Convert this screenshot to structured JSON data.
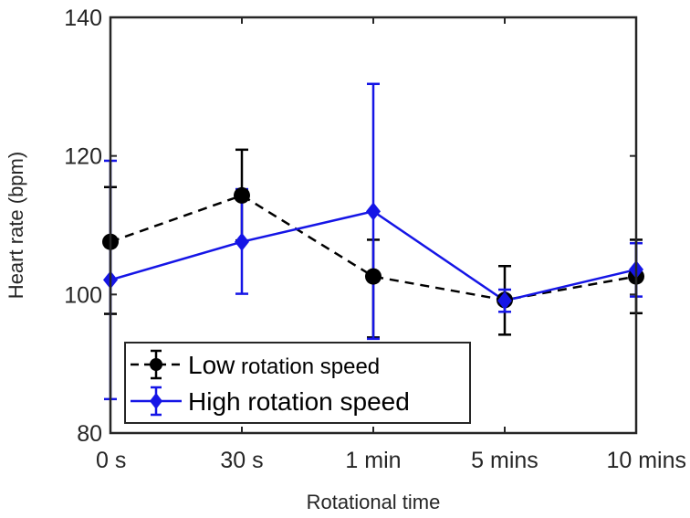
{
  "chart_data": {
    "type": "line",
    "xlabel": "Rotational time",
    "ylabel": "Heart rate (bpm)",
    "categories": [
      "0 s",
      "30 s",
      "1 min",
      "5 mins",
      "10 mins"
    ],
    "ylim": [
      80,
      140
    ],
    "yticks": [
      80,
      100,
      120,
      140
    ],
    "grid": false,
    "legend_position": "bottom-left",
    "series": [
      {
        "name_main": "Low",
        "name_rest": " rotation speed",
        "color": "#000000",
        "line_style": "dashed",
        "marker": "circle",
        "values": [
          107.6,
          114.3,
          102.6,
          99.2,
          102.6
        ],
        "error_low": [
          97.2,
          107.8,
          93.8,
          94.2,
          97.3
        ],
        "error_high": [
          115.5,
          120.9,
          107.9,
          104.1,
          107.9
        ]
      },
      {
        "name_main": "High rotation speed",
        "name_rest": "",
        "color": "#1515e6",
        "line_style": "solid",
        "marker": "diamond",
        "values": [
          102.1,
          107.6,
          112.0,
          99.1,
          103.6
        ],
        "error_low": [
          84.9,
          100.1,
          93.6,
          97.5,
          99.7
        ],
        "error_high": [
          119.3,
          115.2,
          130.4,
          100.7,
          107.4
        ]
      }
    ]
  }
}
